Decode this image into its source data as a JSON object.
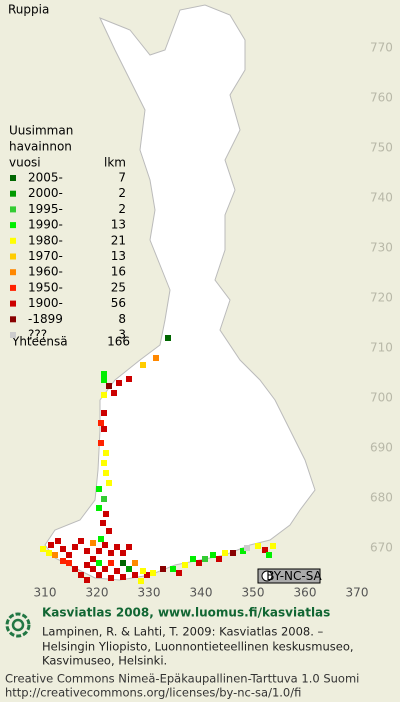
{
  "title": "Ruppia",
  "legend": {
    "heading": [
      "Uusimman",
      "havainnon"
    ],
    "year_header": "vuosi",
    "count_header": "lkm",
    "rows": [
      {
        "label": "2005-",
        "count": 7,
        "color": "#006600"
      },
      {
        "label": "2000-",
        "count": 2,
        "color": "#009900"
      },
      {
        "label": "1995-",
        "count": 2,
        "color": "#33cc33"
      },
      {
        "label": "1990-",
        "count": 13,
        "color": "#00ee00"
      },
      {
        "label": "1980-",
        "count": 21,
        "color": "#ffff00"
      },
      {
        "label": "1970-",
        "count": 13,
        "color": "#ffcc00"
      },
      {
        "label": "1960-",
        "count": 16,
        "color": "#ff8800"
      },
      {
        "label": "1950-",
        "count": 25,
        "color": "#ff2200"
      },
      {
        "label": "1900-",
        "count": 56,
        "color": "#cc0000"
      },
      {
        "label": "-1899",
        "count": 8,
        "color": "#880000"
      },
      {
        "label": "???",
        "count": 3,
        "color": "#cccccc"
      }
    ],
    "total_label": "Yhteensä",
    "total": 166
  },
  "map": {
    "y_labels": [
      "770",
      "760",
      "750",
      "740",
      "730",
      "720",
      "710",
      "700",
      "690",
      "680",
      "670"
    ],
    "x_labels": [
      "310",
      "320",
      "330",
      "340",
      "350",
      "360",
      "370"
    ]
  },
  "badge": "BY-NC-SA",
  "footer": {
    "headline": "Kasviatlas 2008, www.luomus.fi/kasviatlas",
    "citation": [
      "Lampinen, R. & Lahti, T. 2009: Kasviatlas 2008. –",
      "Helsingin Yliopisto, Luonnontieteellinen keskusmuseo,",
      "Kasvimuseo, Helsinki."
    ],
    "license": [
      "Creative Commons Nimeä-Epäkaupallinen-Tarttuva 1.0 Suomi",
      "http://creativecommons.org/licenses/by-nc-sa/1.0/fi"
    ]
  }
}
